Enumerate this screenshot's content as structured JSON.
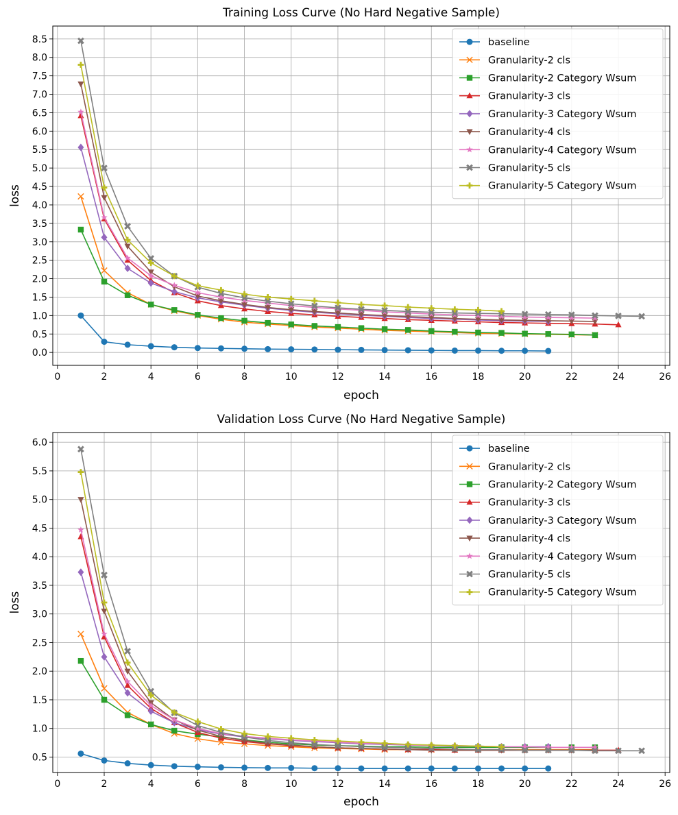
{
  "chart_data": [
    {
      "type": "line",
      "title": "Training Loss Curve (No Hard Negative Sample)",
      "xlabel": "epoch",
      "ylabel": "loss",
      "xlim": [
        -0.2,
        26.2
      ],
      "ylim": [
        -0.35,
        8.85
      ],
      "xticks": [
        0,
        2,
        4,
        6,
        8,
        10,
        12,
        14,
        16,
        18,
        20,
        22,
        24,
        26
      ],
      "yticks": [
        0.0,
        0.5,
        1.0,
        1.5,
        2.0,
        2.5,
        3.0,
        3.5,
        4.0,
        4.5,
        5.0,
        5.5,
        6.0,
        6.5,
        7.0,
        7.5,
        8.0,
        8.5
      ],
      "ytick_labels": [
        "0.0",
        "0.5",
        "1.0",
        "1.5",
        "2.0",
        "2.5",
        "3.0",
        "3.5",
        "4.0",
        "4.5",
        "5.0",
        "5.5",
        "6.0",
        "6.5",
        "7.0",
        "7.5",
        "8.0",
        "8.5"
      ],
      "grid": true,
      "legend": "upper-right",
      "series": [
        {
          "name": "baseline",
          "color": "#1f77b4",
          "marker": "circle",
          "values": [
            1.0,
            0.29,
            0.21,
            0.17,
            0.14,
            0.12,
            0.11,
            0.1,
            0.09,
            0.085,
            0.08,
            0.075,
            0.07,
            0.065,
            0.06,
            0.055,
            0.05,
            0.05,
            0.045,
            0.045,
            0.04
          ]
        },
        {
          "name": "Granularity-2 cls",
          "color": "#ff7f0e",
          "marker": "x",
          "values": [
            4.23,
            2.22,
            1.62,
            1.3,
            1.13,
            1.0,
            0.9,
            0.82,
            0.77,
            0.73,
            0.69,
            0.66,
            0.63,
            0.6,
            0.58,
            0.56,
            0.54,
            0.52,
            0.51,
            0.5,
            0.49,
            0.48,
            0.47
          ]
        },
        {
          "name": "Granularity-2 Category Wsum",
          "color": "#2ca02c",
          "marker": "square",
          "values": [
            3.33,
            1.92,
            1.55,
            1.3,
            1.15,
            1.02,
            0.93,
            0.86,
            0.8,
            0.76,
            0.72,
            0.69,
            0.66,
            0.63,
            0.61,
            0.58,
            0.56,
            0.54,
            0.53,
            0.51,
            0.5,
            0.49,
            0.47
          ]
        },
        {
          "name": "Granularity-3 cls",
          "color": "#d62728",
          "marker": "triangle",
          "values": [
            6.42,
            3.62,
            2.5,
            1.95,
            1.62,
            1.4,
            1.27,
            1.18,
            1.11,
            1.06,
            1.02,
            0.98,
            0.95,
            0.92,
            0.89,
            0.87,
            0.85,
            0.83,
            0.81,
            0.8,
            0.79,
            0.78,
            0.77,
            0.75
          ]
        },
        {
          "name": "Granularity-3 Category Wsum",
          "color": "#9467bd",
          "marker": "diamond",
          "values": [
            5.56,
            3.12,
            2.28,
            1.88,
            1.65,
            1.48,
            1.37,
            1.28,
            1.2,
            1.14,
            1.09,
            1.05,
            1.01,
            0.98,
            0.95,
            0.92,
            0.9,
            0.88,
            0.86,
            0.85,
            0.84
          ]
        },
        {
          "name": "Granularity-4 cls",
          "color": "#8c564b",
          "marker": "triangle-down",
          "values": [
            7.28,
            4.2,
            2.88,
            2.18,
            1.78,
            1.53,
            1.4,
            1.3,
            1.22,
            1.16,
            1.11,
            1.07,
            1.03,
            1.0,
            0.97,
            0.95,
            0.92,
            0.9,
            0.88,
            0.87,
            0.86,
            0.85,
            0.84
          ]
        },
        {
          "name": "Granularity-4 Category Wsum",
          "color": "#e377c2",
          "marker": "star",
          "values": [
            6.52,
            3.66,
            2.56,
            2.08,
            1.82,
            1.62,
            1.5,
            1.41,
            1.34,
            1.27,
            1.22,
            1.18,
            1.14,
            1.1,
            1.07,
            1.04,
            1.02,
            1.0,
            0.98,
            0.96,
            0.95,
            0.94,
            0.93
          ]
        },
        {
          "name": "Granularity-5 cls",
          "color": "#7f7f7f",
          "marker": "x-filled",
          "values": [
            8.45,
            5.0,
            3.42,
            2.55,
            2.07,
            1.77,
            1.6,
            1.48,
            1.39,
            1.32,
            1.26,
            1.21,
            1.17,
            1.14,
            1.11,
            1.09,
            1.07,
            1.06,
            1.05,
            1.04,
            1.03,
            1.02,
            1.0,
            0.99,
            0.98
          ]
        },
        {
          "name": "Granularity-5 Category Wsum",
          "color": "#bcbd22",
          "marker": "plus-filled",
          "values": [
            7.8,
            4.47,
            3.05,
            2.43,
            2.07,
            1.81,
            1.69,
            1.58,
            1.5,
            1.45,
            1.4,
            1.35,
            1.3,
            1.27,
            1.23,
            1.2,
            1.17,
            1.15,
            1.12
          ]
        }
      ]
    },
    {
      "type": "line",
      "title": "Validation Loss Curve (No Hard Negative Sample)",
      "xlabel": "epoch",
      "ylabel": "loss",
      "xlim": [
        -0.2,
        26.2
      ],
      "ylim": [
        0.23,
        6.17
      ],
      "xticks": [
        0,
        2,
        4,
        6,
        8,
        10,
        12,
        14,
        16,
        18,
        20,
        22,
        24,
        26
      ],
      "yticks": [
        0.5,
        1.0,
        1.5,
        2.0,
        2.5,
        3.0,
        3.5,
        4.0,
        4.5,
        5.0,
        5.5,
        6.0
      ],
      "ytick_labels": [
        "0.5",
        "1.0",
        "1.5",
        "2.0",
        "2.5",
        "3.0",
        "3.5",
        "4.0",
        "4.5",
        "5.0",
        "5.5",
        "6.0"
      ],
      "grid": true,
      "legend": "upper-right",
      "series": [
        {
          "name": "baseline",
          "color": "#1f77b4",
          "marker": "circle",
          "values": [
            0.56,
            0.44,
            0.39,
            0.36,
            0.34,
            0.33,
            0.32,
            0.315,
            0.31,
            0.31,
            0.305,
            0.305,
            0.3,
            0.3,
            0.3,
            0.3,
            0.3,
            0.3,
            0.3,
            0.3,
            0.3
          ]
        },
        {
          "name": "Granularity-2 cls",
          "color": "#ff7f0e",
          "marker": "x",
          "values": [
            2.65,
            1.7,
            1.28,
            1.07,
            0.91,
            0.82,
            0.76,
            0.73,
            0.7,
            0.68,
            0.66,
            0.65,
            0.64,
            0.63,
            0.63,
            0.63,
            0.63,
            0.63,
            0.63,
            0.63,
            0.63,
            0.63,
            0.63
          ]
        },
        {
          "name": "Granularity-2 Category Wsum",
          "color": "#2ca02c",
          "marker": "square",
          "values": [
            2.18,
            1.5,
            1.23,
            1.07,
            0.96,
            0.9,
            0.85,
            0.8,
            0.76,
            0.73,
            0.71,
            0.7,
            0.69,
            0.68,
            0.68,
            0.67,
            0.67,
            0.67,
            0.67,
            0.67,
            0.67,
            0.67,
            0.67
          ]
        },
        {
          "name": "Granularity-3 cls",
          "color": "#d62728",
          "marker": "triangle",
          "values": [
            4.35,
            2.6,
            1.75,
            1.35,
            1.1,
            0.93,
            0.83,
            0.77,
            0.73,
            0.7,
            0.68,
            0.66,
            0.65,
            0.64,
            0.63,
            0.63,
            0.62,
            0.62,
            0.62,
            0.62,
            0.62,
            0.62,
            0.62,
            0.62
          ]
        },
        {
          "name": "Granularity-3 Category Wsum",
          "color": "#9467bd",
          "marker": "diamond",
          "values": [
            3.73,
            2.25,
            1.62,
            1.3,
            1.1,
            0.98,
            0.9,
            0.85,
            0.82,
            0.79,
            0.77,
            0.75,
            0.73,
            0.72,
            0.71,
            0.7,
            0.69,
            0.69,
            0.68,
            0.68,
            0.68
          ]
        },
        {
          "name": "Granularity-4 cls",
          "color": "#8c564b",
          "marker": "triangle-down",
          "values": [
            5.0,
            3.05,
            2.0,
            1.45,
            1.15,
            0.97,
            0.86,
            0.79,
            0.74,
            0.71,
            0.68,
            0.66,
            0.65,
            0.64,
            0.63,
            0.62,
            0.62,
            0.62,
            0.62,
            0.62,
            0.62,
            0.62,
            0.62
          ]
        },
        {
          "name": "Granularity-4 Category Wsum",
          "color": "#e377c2",
          "marker": "star",
          "values": [
            4.47,
            2.65,
            1.82,
            1.4,
            1.15,
            1.0,
            0.91,
            0.86,
            0.83,
            0.8,
            0.78,
            0.76,
            0.74,
            0.73,
            0.71,
            0.7,
            0.7,
            0.69,
            0.68,
            0.68,
            0.67,
            0.67,
            0.67
          ]
        },
        {
          "name": "Granularity-5 cls",
          "color": "#7f7f7f",
          "marker": "x-filled",
          "values": [
            5.88,
            3.68,
            2.35,
            1.65,
            1.27,
            1.05,
            0.93,
            0.85,
            0.79,
            0.75,
            0.72,
            0.7,
            0.68,
            0.67,
            0.66,
            0.65,
            0.64,
            0.63,
            0.63,
            0.62,
            0.62,
            0.62,
            0.61,
            0.61,
            0.61
          ]
        },
        {
          "name": "Granularity-5 Category Wsum",
          "color": "#bcbd22",
          "marker": "plus-filled",
          "values": [
            5.48,
            3.2,
            2.15,
            1.58,
            1.28,
            1.12,
            0.99,
            0.91,
            0.86,
            0.83,
            0.8,
            0.78,
            0.76,
            0.74,
            0.72,
            0.71,
            0.7,
            0.69,
            0.68
          ]
        }
      ]
    }
  ]
}
